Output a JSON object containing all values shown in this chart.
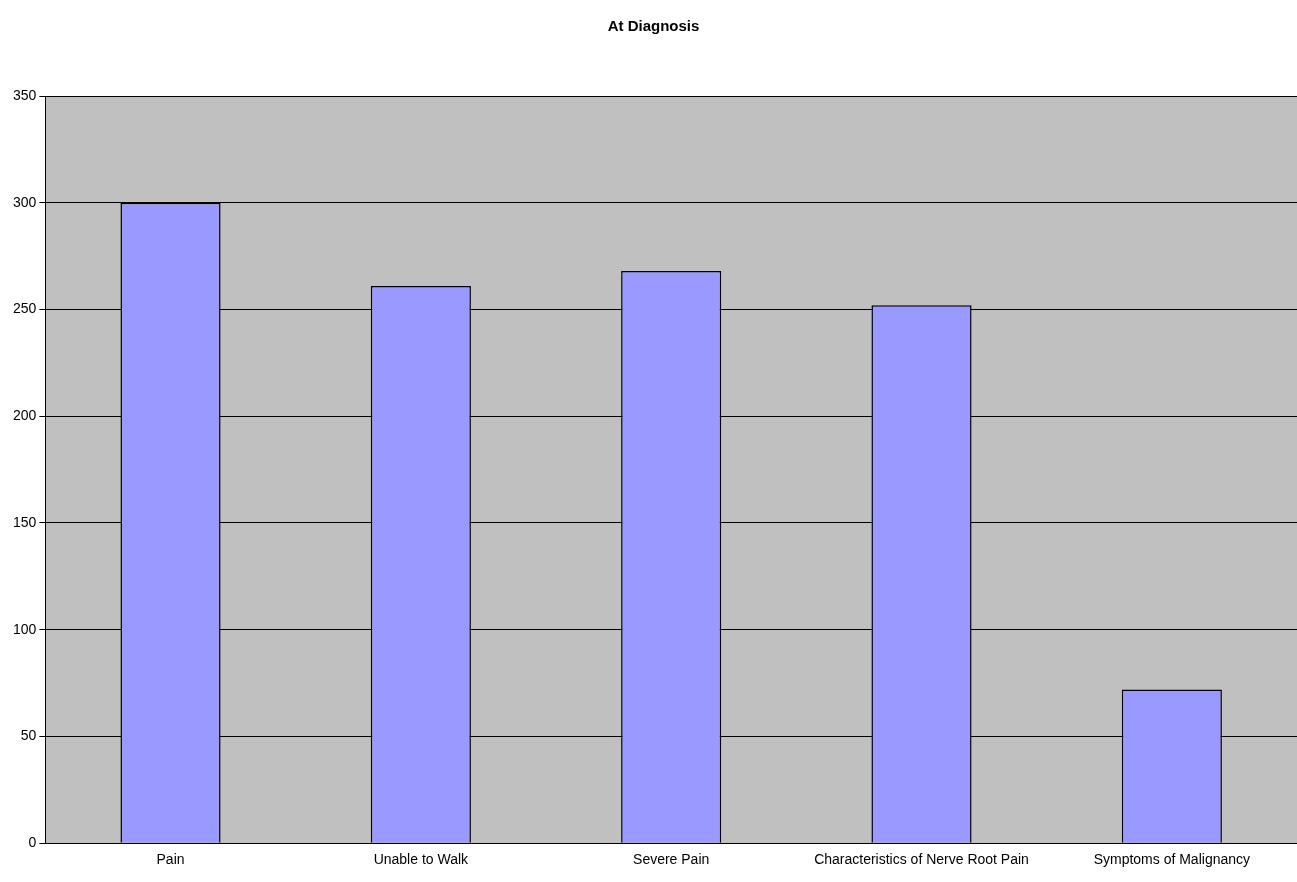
{
  "chart_data": {
    "type": "bar",
    "title": "At Diagnosis",
    "categories": [
      "Pain",
      "Unable to Walk",
      "Severe Pain",
      "Characteristics of Nerve Root Pain",
      "Symptoms of Malignancy"
    ],
    "values": [
      300,
      261,
      268,
      252,
      72
    ],
    "color": "#9999ff",
    "ylim": [
      0,
      350
    ],
    "yticks": [
      0,
      50,
      100,
      150,
      200,
      250,
      300,
      350
    ],
    "grid": "y",
    "legend": false
  }
}
